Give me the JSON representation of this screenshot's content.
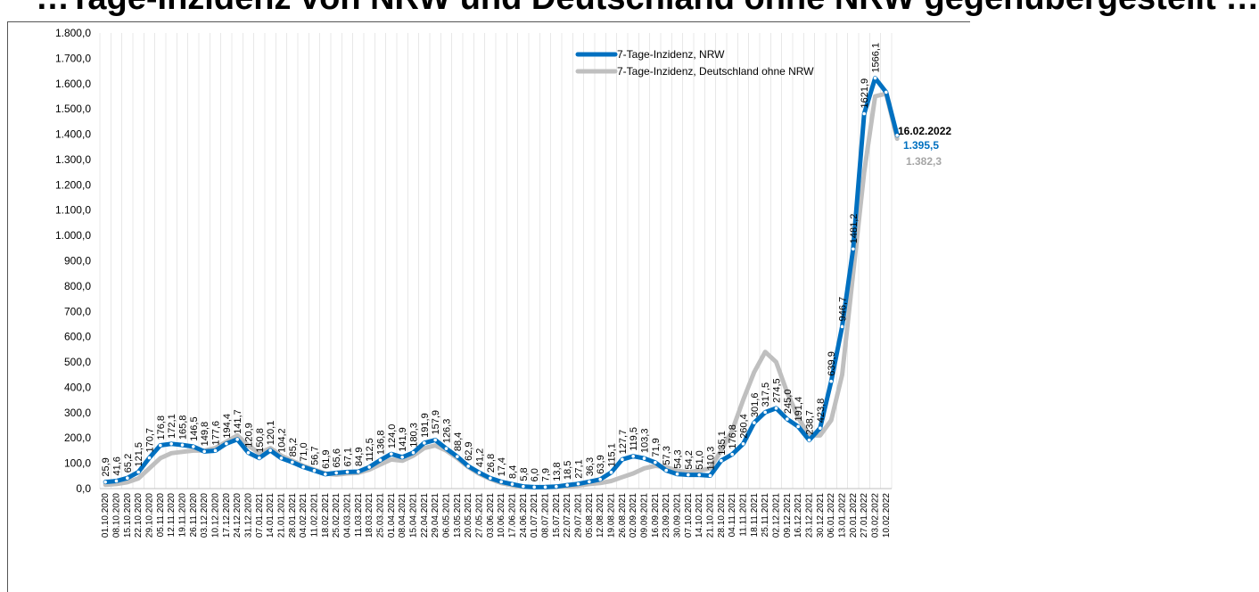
{
  "chart_data": {
    "type": "line",
    "title": "…Tage-Inzidenz von NRW und Deutschland ohne NRW gegenübergestellt …",
    "ylim": [
      0,
      1800
    ],
    "yticks": [
      "0,0",
      "100,0",
      "200,0",
      "300,0",
      "400,0",
      "500,0",
      "600,0",
      "700,0",
      "800,0",
      "900,0",
      "1.000,0",
      "1.100,0",
      "1.200,0",
      "1.300,0",
      "1.400,0",
      "1.500,0",
      "1.600,0",
      "1.700,0",
      "1.800,0"
    ],
    "x_tick_labels": [
      "01.10.2020",
      "08.10.2020",
      "15.10.2020",
      "22.10.2020",
      "29.10.2020",
      "05.11.2020",
      "12.11.2020",
      "19.11.2020",
      "26.11.2020",
      "03.12.2020",
      "10.12.2020",
      "17.12.2020",
      "24.12.2020",
      "31.12.2020",
      "07.01.2021",
      "14.01.2021",
      "21.01.2021",
      "28.01.2021",
      "04.02.2021",
      "11.02.2021",
      "18.02.2021",
      "25.02.2021",
      "04.03.2021",
      "11.03.2021",
      "18.03.2021",
      "25.03.2021",
      "01.04.2021",
      "08.04.2021",
      "15.04.2021",
      "22.04.2021",
      "29.04.2021",
      "06.05.2021",
      "13.05.2021",
      "20.05.2021",
      "27.05.2021",
      "03.06.2021",
      "10.06.2021",
      "17.06.2021",
      "24.06.2021",
      "01.07.2021",
      "08.07.2021",
      "15.07.2021",
      "22.07.2021",
      "29.07.2021",
      "05.08.2021",
      "12.08.2021",
      "19.08.2021",
      "26.08.2021",
      "02.09.2021",
      "09.09.2021",
      "16.09.2021",
      "23.09.2021",
      "30.09.2021",
      "07.10.2021",
      "14.10.2021",
      "21.10.2021",
      "28.10.2021",
      "04.11.2021",
      "11.11.2021",
      "18.11.2021",
      "25.11.2021",
      "02.12.2021",
      "09.12.2021",
      "16.12.2021",
      "23.12.2021",
      "30.12.2021",
      "06.01.2022",
      "13.01.2022",
      "20.01.2022",
      "27.01.2022",
      "03.02.2022",
      "10.02.2022"
    ],
    "series": [
      {
        "name": "7-Tage-Inzidenz, NRW",
        "color": "#0070c0",
        "values": [
          25.9,
          30,
          41.6,
          65.2,
          121.5,
          170.7,
          176.8,
          172.1,
          165.8,
          146.5,
          149.8,
          177.6,
          194.4,
          141.7,
          120.9,
          150.8,
          120.1,
          104.2,
          85.2,
          71,
          56.7,
          61.9,
          65.6,
          67.1,
          84.9,
          112.5,
          136.8,
          124,
          141.9,
          180.3,
          191.9,
          157.9,
          126.3,
          88.4,
          62.9,
          41.2,
          26.8,
          17.4,
          8.4,
          5.8,
          6,
          7.9,
          13.8,
          18.5,
          27.1,
          36.3,
          63.9,
          115.1,
          127.7,
          119.5,
          103.3,
          71.9,
          57.3,
          54.3,
          54.2,
          51,
          110.3,
          135.1,
          176.8,
          260.4,
          301.6,
          317.5,
          274.5,
          245,
          191.4,
          238.7,
          423.8,
          639.9,
          946.7,
          1481.2,
          1621.9,
          1566.1,
          1395.5
        ]
      },
      {
        "name": "7-Tage-Inzidenz, Deutschland ohne NRW",
        "color": "#bfbfbf",
        "values": [
          15,
          18,
          25,
          40,
          80,
          120,
          140,
          145,
          150,
          150,
          160,
          185,
          210,
          170,
          140,
          160,
          130,
          110,
          90,
          75,
          60,
          55,
          60,
          62,
          75,
          95,
          115,
          110,
          130,
          160,
          170,
          150,
          120,
          85,
          58,
          38,
          22,
          13,
          6,
          5,
          5,
          6,
          9,
          12,
          18,
          22,
          30,
          45,
          60,
          80,
          90,
          85,
          70,
          65,
          70,
          80,
          150,
          230,
          350,
          460,
          540,
          500,
          380,
          280,
          210,
          210,
          270,
          450,
          850,
          1250,
          1550,
          1560,
          1382.3
        ]
      }
    ],
    "data_labels_nrw": [
      "25,9",
      "41,6",
      "65,2",
      "121,5",
      "170,7",
      "176,8",
      "172,1",
      "165,8",
      "146,5",
      "149,8",
      "177,6",
      "194,4",
      "141,7",
      "120,9",
      "150,8",
      "120,1",
      "104,2",
      "85,2",
      "71,0",
      "56,7",
      "61,9",
      "65,6",
      "67,1",
      "84,9",
      "112,5",
      "136,8",
      "124,0",
      "141,9",
      "180,3",
      "191,9",
      "157,9",
      "126,3",
      "88,4",
      "62,9",
      "41,2",
      "26,8",
      "17,4",
      "8,4",
      "5,8",
      "6,0",
      "7,9",
      "13,8",
      "18,5",
      "27,1",
      "36,3",
      "63,9",
      "115,1",
      "127,7",
      "119,5",
      "103,3",
      "71,9",
      "57,3",
      "54,3",
      "54,2",
      "51,0",
      "110,3",
      "135,1",
      "176,8",
      "260,4",
      "301,6",
      "317,5",
      "274,5",
      "245,0",
      "191,4",
      "238,7",
      "423,8",
      "639,9",
      "946,7",
      "1481,2",
      "1621,9",
      "1566,1"
    ],
    "end_annotation": {
      "date": "16.02.2022",
      "nrw_value": "1.395,5",
      "de_value": "1.382,3",
      "nrw_color": "#0070c0",
      "de_color": "#a6a6a6"
    },
    "legend_position": "top-right",
    "grid": "vertical"
  }
}
